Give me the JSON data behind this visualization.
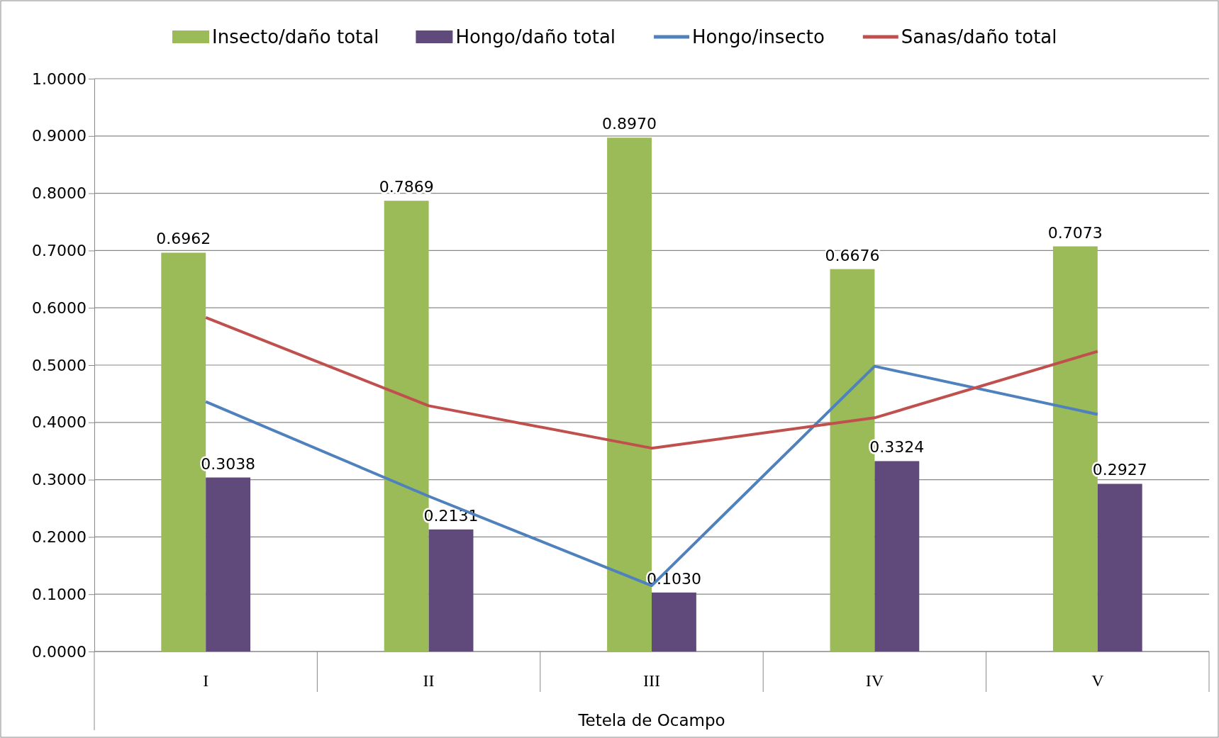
{
  "chart_data": {
    "type": "bar",
    "xlabel": "Tetela de Ocampo",
    "categories": [
      "I",
      "II",
      "III",
      "IV",
      "V"
    ],
    "series": [
      {
        "name": "Insecto/daño total",
        "color": "#9bbb59",
        "values": [
          0.6962,
          0.7869,
          0.897,
          0.6676,
          0.7073
        ],
        "value_labels": [
          "0.6962",
          "0.7869",
          "0.8970",
          "0.6676",
          "0.7073"
        ]
      },
      {
        "name": "Hongo/daño total",
        "color": "#604a7b",
        "values": [
          0.3038,
          0.2131,
          0.103,
          0.3324,
          0.2927
        ],
        "value_labels": [
          "0.3038",
          "0.2131",
          "0.1030",
          "0.3324",
          "0.2927"
        ]
      },
      {
        "name": "Hongo/insecto",
        "type": "line",
        "color": "#4f81bd",
        "values": [
          0.436,
          0.271,
          0.115,
          0.498,
          0.414
        ]
      },
      {
        "name": "Sanas/daño total",
        "type": "line",
        "color": "#c0504d",
        "values": [
          0.583,
          0.429,
          0.355,
          0.408,
          0.524
        ]
      }
    ],
    "ylim": [
      0,
      1
    ],
    "yticks": [
      {
        "value": 0,
        "label": "0.0000"
      },
      {
        "value": 0.1,
        "label": "0.1000"
      },
      {
        "value": 0.2,
        "label": "0.2000"
      },
      {
        "value": 0.3,
        "label": "0.3000"
      },
      {
        "value": 0.4,
        "label": "0.4000"
      },
      {
        "value": 0.5,
        "label": "0.5000"
      },
      {
        "value": 0.6,
        "label": "0.6000"
      },
      {
        "value": 0.7,
        "label": "0.7000"
      },
      {
        "value": 0.8,
        "label": "0.8000"
      },
      {
        "value": 0.9,
        "label": "0.9000"
      },
      {
        "value": 1,
        "label": "1.0000"
      }
    ],
    "grid": "y",
    "legend": "top"
  }
}
